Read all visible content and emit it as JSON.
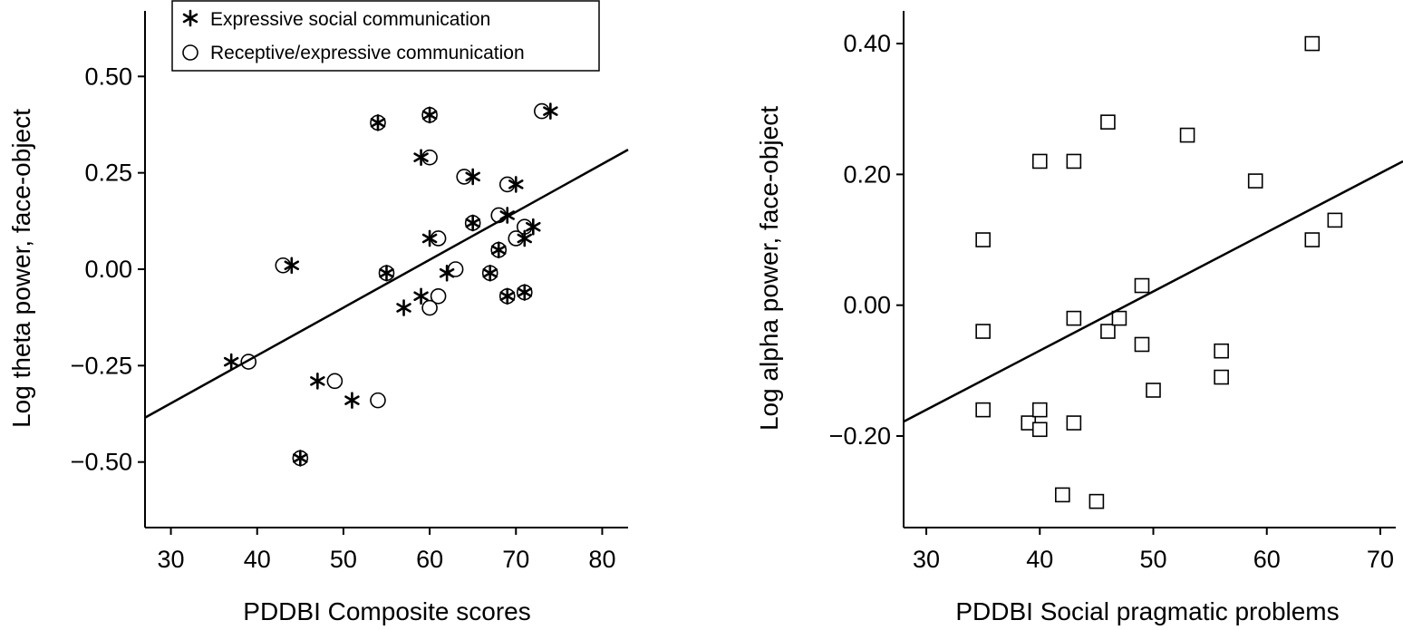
{
  "chart_data": [
    {
      "type": "scatter",
      "title": "",
      "xlabel": "PDDBI Composite scores",
      "ylabel": "Log theta power, face-object",
      "xlim": [
        27,
        83
      ],
      "ylim": [
        -0.67,
        0.67
      ],
      "xticks": [
        30,
        40,
        50,
        60,
        70,
        80
      ],
      "yticks": [
        -0.5,
        -0.25,
        0.0,
        0.25,
        0.5
      ],
      "ytick_labels": [
        "−0.50",
        "−0.25",
        "0.00",
        "0.25",
        "0.50"
      ],
      "grid": false,
      "legend_position": "top-center",
      "series": [
        {
          "name": "Expressive social communication",
          "marker": "asterisk",
          "points": [
            [
              37,
              -0.24
            ],
            [
              44,
              0.01
            ],
            [
              45,
              -0.49
            ],
            [
              47,
              -0.29
            ],
            [
              51,
              -0.34
            ],
            [
              54,
              0.38
            ],
            [
              55,
              -0.01
            ],
            [
              57,
              -0.1
            ],
            [
              59,
              -0.07
            ],
            [
              59,
              0.29
            ],
            [
              60,
              0.4
            ],
            [
              60,
              0.08
            ],
            [
              62,
              -0.01
            ],
            [
              65,
              0.24
            ],
            [
              65,
              0.12
            ],
            [
              67,
              -0.01
            ],
            [
              68,
              0.05
            ],
            [
              69,
              -0.07
            ],
            [
              69,
              0.14
            ],
            [
              70,
              0.22
            ],
            [
              71,
              0.08
            ],
            [
              71,
              -0.06
            ],
            [
              72,
              0.11
            ],
            [
              74,
              0.41
            ]
          ]
        },
        {
          "name": "Receptive/expressive communication",
          "marker": "circle",
          "points": [
            [
              39,
              -0.24
            ],
            [
              43,
              0.01
            ],
            [
              45,
              -0.49
            ],
            [
              49,
              -0.29
            ],
            [
              54,
              -0.34
            ],
            [
              54,
              0.38
            ],
            [
              55,
              -0.01
            ],
            [
              60,
              0.4
            ],
            [
              60,
              0.29
            ],
            [
              60,
              -0.1
            ],
            [
              61,
              0.08
            ],
            [
              61,
              -0.07
            ],
            [
              63,
              0.0
            ],
            [
              64,
              0.24
            ],
            [
              65,
              0.12
            ],
            [
              67,
              -0.01
            ],
            [
              68,
              0.14
            ],
            [
              68,
              0.05
            ],
            [
              69,
              0.22
            ],
            [
              69,
              -0.07
            ],
            [
              70,
              0.08
            ],
            [
              71,
              0.11
            ],
            [
              71,
              -0.06
            ],
            [
              73,
              0.41
            ]
          ]
        }
      ],
      "fit_line": [
        [
          27,
          -0.385
        ],
        [
          83,
          0.31
        ]
      ]
    },
    {
      "type": "scatter",
      "title": "",
      "xlabel": "PDDBI Social pragmatic problems",
      "ylabel": "Log alpha power, face-object",
      "xlim": [
        28,
        72
      ],
      "ylim": [
        -0.34,
        0.45
      ],
      "xticks": [
        30,
        40,
        50,
        60,
        70
      ],
      "yticks": [
        -0.2,
        0.0,
        0.2,
        0.4
      ],
      "ytick_labels": [
        "−0.20",
        "0.00",
        "0.20",
        "0.40"
      ],
      "grid": false,
      "series": [
        {
          "name": "",
          "marker": "square",
          "points": [
            [
              35,
              0.1
            ],
            [
              35,
              -0.04
            ],
            [
              35,
              -0.16
            ],
            [
              39,
              -0.18
            ],
            [
              40,
              0.22
            ],
            [
              40,
              -0.16
            ],
            [
              40,
              -0.19
            ],
            [
              42,
              -0.29
            ],
            [
              43,
              0.22
            ],
            [
              43,
              -0.02
            ],
            [
              43,
              -0.18
            ],
            [
              45,
              -0.3
            ],
            [
              46,
              0.28
            ],
            [
              46,
              -0.04
            ],
            [
              47,
              -0.02
            ],
            [
              49,
              0.03
            ],
            [
              49,
              -0.06
            ],
            [
              50,
              -0.13
            ],
            [
              53,
              0.26
            ],
            [
              56,
              -0.07
            ],
            [
              56,
              -0.11
            ],
            [
              59,
              0.19
            ],
            [
              64,
              0.4
            ],
            [
              64,
              0.1
            ],
            [
              66,
              0.13
            ]
          ]
        }
      ],
      "fit_line": [
        [
          28,
          -0.178
        ],
        [
          72,
          0.22
        ]
      ]
    }
  ]
}
